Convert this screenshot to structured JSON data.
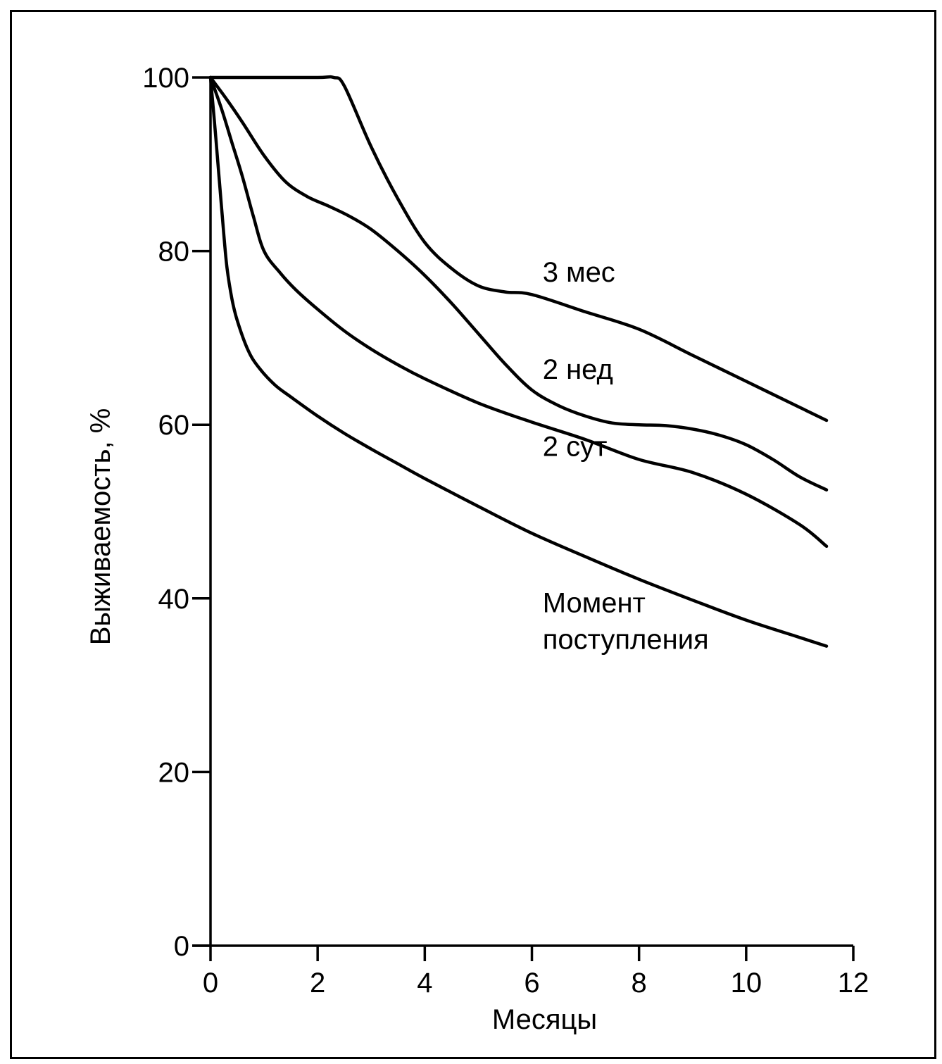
{
  "chart_data": {
    "type": "line",
    "xlabel": "Месяцы",
    "ylabel": "Выживаемость, %",
    "xlim": [
      0,
      12
    ],
    "ylim": [
      0,
      100
    ],
    "x_ticks": [
      0,
      2,
      4,
      6,
      8,
      10,
      12
    ],
    "y_ticks": [
      0,
      20,
      40,
      60,
      80,
      100
    ],
    "grid": false,
    "line_color": "#000000",
    "series": [
      {
        "name": "3 мес",
        "label_lines": [
          "3 мес"
        ],
        "label_at": [
          6.2,
          76.5
        ],
        "x": [
          0,
          1,
          2,
          2.3,
          2.5,
          3,
          3.5,
          4,
          4.5,
          5,
          5.5,
          6,
          7,
          8,
          9,
          10,
          11,
          11.5
        ],
        "y": [
          100,
          100,
          100,
          100,
          99,
          92,
          86,
          81,
          78,
          76,
          75.3,
          75,
          73,
          71,
          68,
          65,
          62,
          60.5
        ]
      },
      {
        "name": "2 нед",
        "label_lines": [
          "2 нед"
        ],
        "label_at": [
          6.2,
          65.3
        ],
        "x": [
          0,
          0.3,
          0.6,
          1,
          1.4,
          1.8,
          2.2,
          2.6,
          3,
          3.5,
          4,
          4.5,
          5,
          5.5,
          6,
          6.5,
          7,
          7.5,
          8,
          8.5,
          9,
          9.5,
          10,
          10.5,
          11,
          11.5
        ],
        "y": [
          100,
          97.5,
          94.8,
          91,
          88,
          86.3,
          85.2,
          84,
          82.5,
          80,
          77.2,
          74,
          70.5,
          67,
          64,
          62.2,
          61,
          60.2,
          60,
          59.9,
          59.5,
          58.8,
          57.7,
          56,
          54,
          52.5
        ]
      },
      {
        "name": "2 сут",
        "label_lines": [
          "2 сут"
        ],
        "label_at": [
          6.2,
          56.4
        ],
        "x": [
          0,
          0.2,
          0.4,
          0.6,
          0.8,
          1,
          1.3,
          1.6,
          2,
          2.5,
          3,
          3.5,
          4,
          5,
          6,
          7,
          8,
          9,
          10,
          11,
          11.5
        ],
        "y": [
          100,
          96.5,
          92.5,
          88.5,
          84,
          80,
          77.5,
          75.5,
          73.3,
          70.8,
          68.7,
          66.9,
          65.3,
          62.5,
          60.3,
          58.3,
          56,
          54.5,
          52,
          48.5,
          46
        ]
      },
      {
        "name": "Момент поступления",
        "label_lines": [
          "Момент",
          "поступления"
        ],
        "label_at": [
          6.2,
          38.4
        ],
        "x": [
          0,
          0.1,
          0.2,
          0.3,
          0.4,
          0.5,
          0.7,
          0.9,
          1.2,
          1.5,
          2,
          2.5,
          3,
          3.5,
          4,
          5,
          6,
          7,
          8,
          9,
          10,
          11,
          11.5
        ],
        "y": [
          100,
          93,
          85.5,
          78.5,
          74.5,
          72,
          68.6,
          66.6,
          64.6,
          63.2,
          61,
          59,
          57.2,
          55.5,
          53.8,
          50.6,
          47.5,
          44.8,
          42.2,
          39.8,
          37.5,
          35.5,
          34.5
        ]
      }
    ]
  }
}
